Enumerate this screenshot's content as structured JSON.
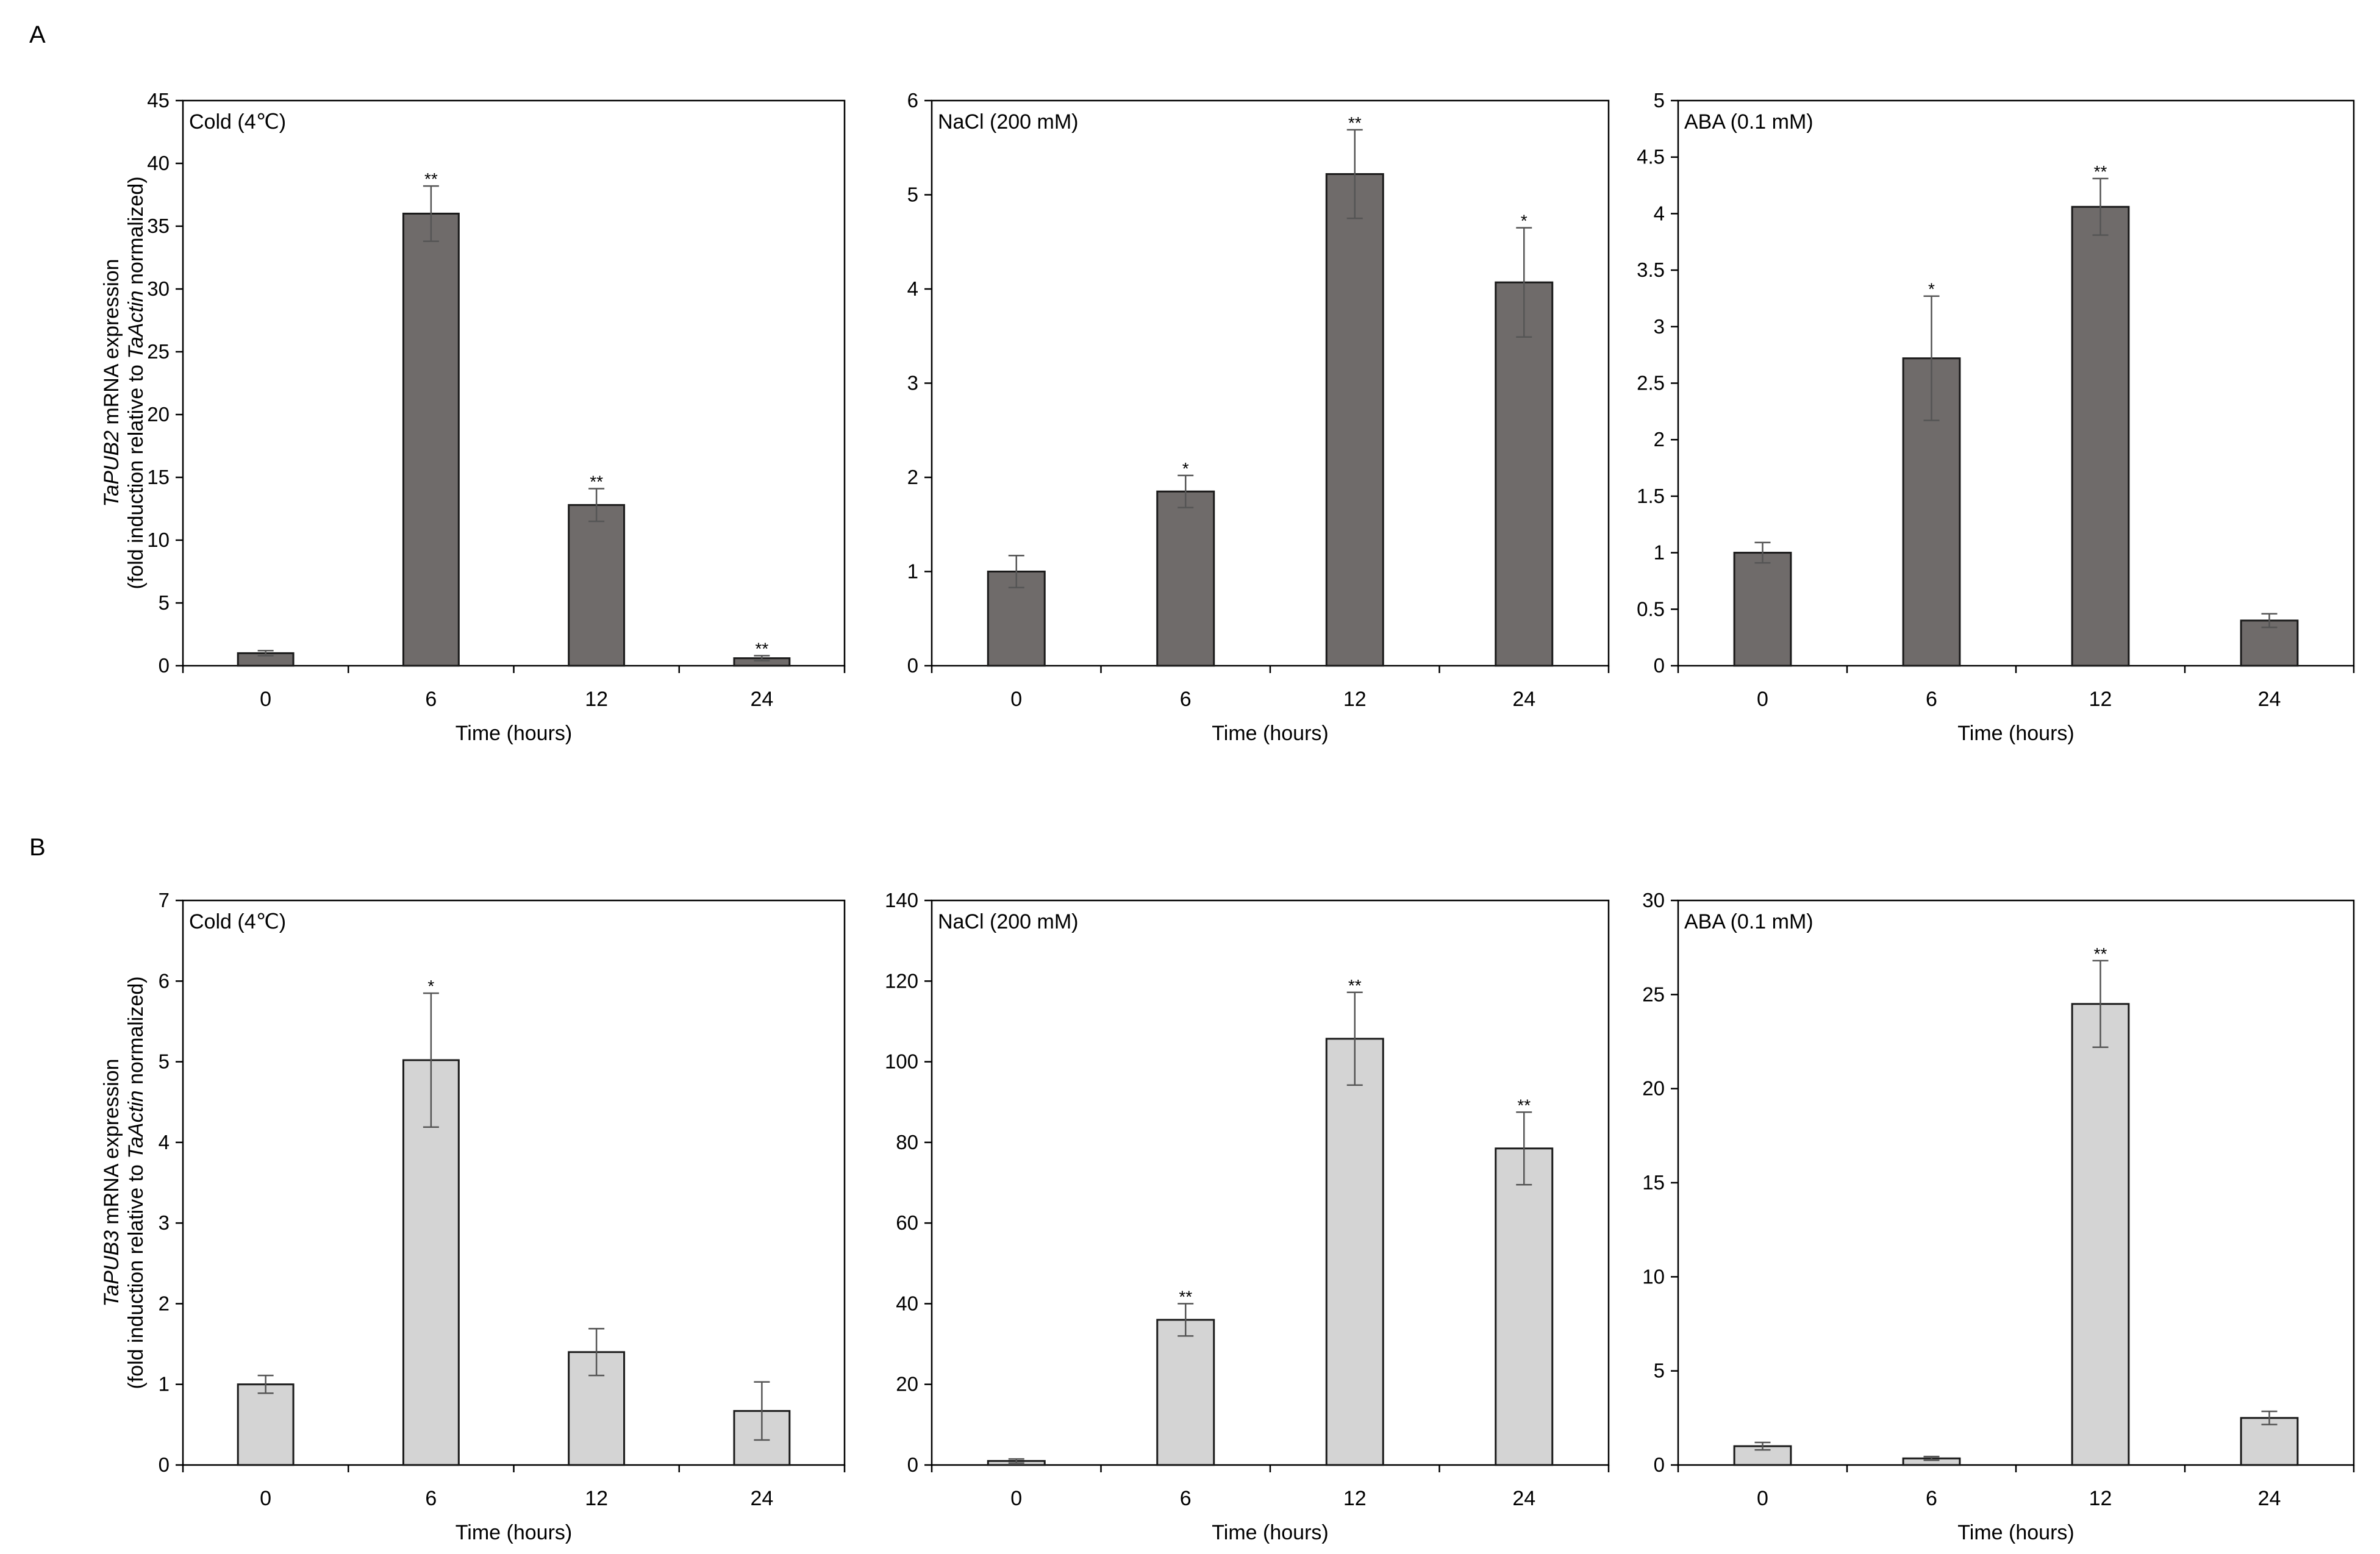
{
  "figure": {
    "panel_labels": [
      "A",
      "B"
    ],
    "y_axis_labels": [
      {
        "gene": "TaPUB2",
        "line1_suffix": " mRNA expression",
        "line2_prefix": "(fold induction relative to ",
        "ref_gene": "TaActin",
        "line2_suffix": " normalized)"
      },
      {
        "gene": "TaPUB3",
        "line1_suffix": " mRNA expression",
        "line2_prefix": "(fold induction relative to ",
        "ref_gene": "TaActin",
        "line2_suffix": " normalized)"
      }
    ],
    "colors": {
      "bar_dark": "#6f6b6a",
      "bar_light": "#d4d4d4",
      "axis": "#000000",
      "bar_stroke": "#1a1a1a",
      "error": "#555555"
    }
  },
  "chart_data": [
    {
      "type": "bar",
      "row": "A",
      "title": "Cold (4℃)",
      "categories": [
        "0",
        "6",
        "12",
        "24"
      ],
      "values": [
        1.0,
        36.0,
        12.8,
        0.6
      ],
      "errors": [
        0.2,
        2.2,
        1.3,
        0.2
      ],
      "significance": [
        "",
        "**",
        "**",
        "**"
      ],
      "xlabel": "Time (hours)",
      "ylim": [
        0,
        45
      ],
      "yticks": [
        0,
        5,
        10,
        15,
        20,
        25,
        30,
        35,
        40,
        45
      ],
      "ytick_labels": [
        "0",
        "5",
        "10",
        "15",
        "20",
        "25",
        "30",
        "35",
        "40",
        "45"
      ]
    },
    {
      "type": "bar",
      "row": "A",
      "title": "NaCl (200 mM)",
      "categories": [
        "0",
        "6",
        "12",
        "24"
      ],
      "values": [
        1.0,
        1.85,
        5.22,
        4.07
      ],
      "errors": [
        0.17,
        0.17,
        0.47,
        0.58
      ],
      "significance": [
        "",
        "*",
        "**",
        "*"
      ],
      "xlabel": "Time (hours)",
      "ylim": [
        0,
        6
      ],
      "yticks": [
        0,
        1,
        2,
        3,
        4,
        5,
        6
      ],
      "ytick_labels": [
        "0",
        "1",
        "2",
        "3",
        "4",
        "5",
        "6"
      ]
    },
    {
      "type": "bar",
      "row": "A",
      "title": "ABA (0.1 mM)",
      "categories": [
        "0",
        "6",
        "12",
        "24"
      ],
      "values": [
        1.0,
        2.72,
        4.06,
        0.4
      ],
      "errors": [
        0.09,
        0.55,
        0.25,
        0.06
      ],
      "significance": [
        "",
        "*",
        "**",
        ""
      ],
      "xlabel": "Time (hours)",
      "ylim": [
        0,
        5
      ],
      "yticks": [
        0,
        0.5,
        1,
        1.5,
        2,
        2.5,
        3,
        3.5,
        4,
        4.5,
        5
      ],
      "ytick_labels": [
        "0",
        "0.5",
        "1",
        "1.5",
        "2",
        "2.5",
        "3",
        "3.5",
        "4",
        "4.5",
        "5"
      ]
    },
    {
      "type": "bar",
      "row": "B",
      "title": "Cold (4℃)",
      "categories": [
        "0",
        "6",
        "12",
        "24"
      ],
      "values": [
        1.0,
        5.02,
        1.4,
        0.67
      ],
      "errors": [
        0.11,
        0.83,
        0.29,
        0.36
      ],
      "significance": [
        "",
        "*",
        "",
        ""
      ],
      "xlabel": "Time (hours)",
      "ylim": [
        0,
        7
      ],
      "yticks": [
        0,
        1,
        2,
        3,
        4,
        5,
        6,
        7
      ],
      "ytick_labels": [
        "0",
        "1",
        "2",
        "3",
        "4",
        "5",
        "6",
        "7"
      ]
    },
    {
      "type": "bar",
      "row": "B",
      "title": "NaCl (200 mM)",
      "categories": [
        "0",
        "6",
        "12",
        "24"
      ],
      "values": [
        1.0,
        36.0,
        105.7,
        78.5
      ],
      "errors": [
        0.5,
        4.0,
        11.5,
        9.0
      ],
      "significance": [
        "",
        "**",
        "**",
        "**"
      ],
      "xlabel": "Time (hours)",
      "ylim": [
        0,
        140
      ],
      "yticks": [
        0,
        20,
        40,
        60,
        80,
        100,
        120,
        140
      ],
      "ytick_labels": [
        "0",
        "20",
        "40",
        "60",
        "80",
        "100",
        "120",
        "140"
      ]
    },
    {
      "type": "bar",
      "row": "B",
      "title": "ABA (0.1 mM)",
      "categories": [
        "0",
        "6",
        "12",
        "24"
      ],
      "values": [
        1.0,
        0.35,
        24.5,
        2.5
      ],
      "errors": [
        0.2,
        0.1,
        2.3,
        0.35
      ],
      "significance": [
        "",
        "",
        "**",
        ""
      ],
      "xlabel": "Time (hours)",
      "ylim": [
        0,
        30
      ],
      "yticks": [
        0,
        5,
        10,
        15,
        20,
        25,
        30
      ],
      "ytick_labels": [
        "0",
        "5",
        "10",
        "15",
        "20",
        "25",
        "30"
      ]
    }
  ]
}
